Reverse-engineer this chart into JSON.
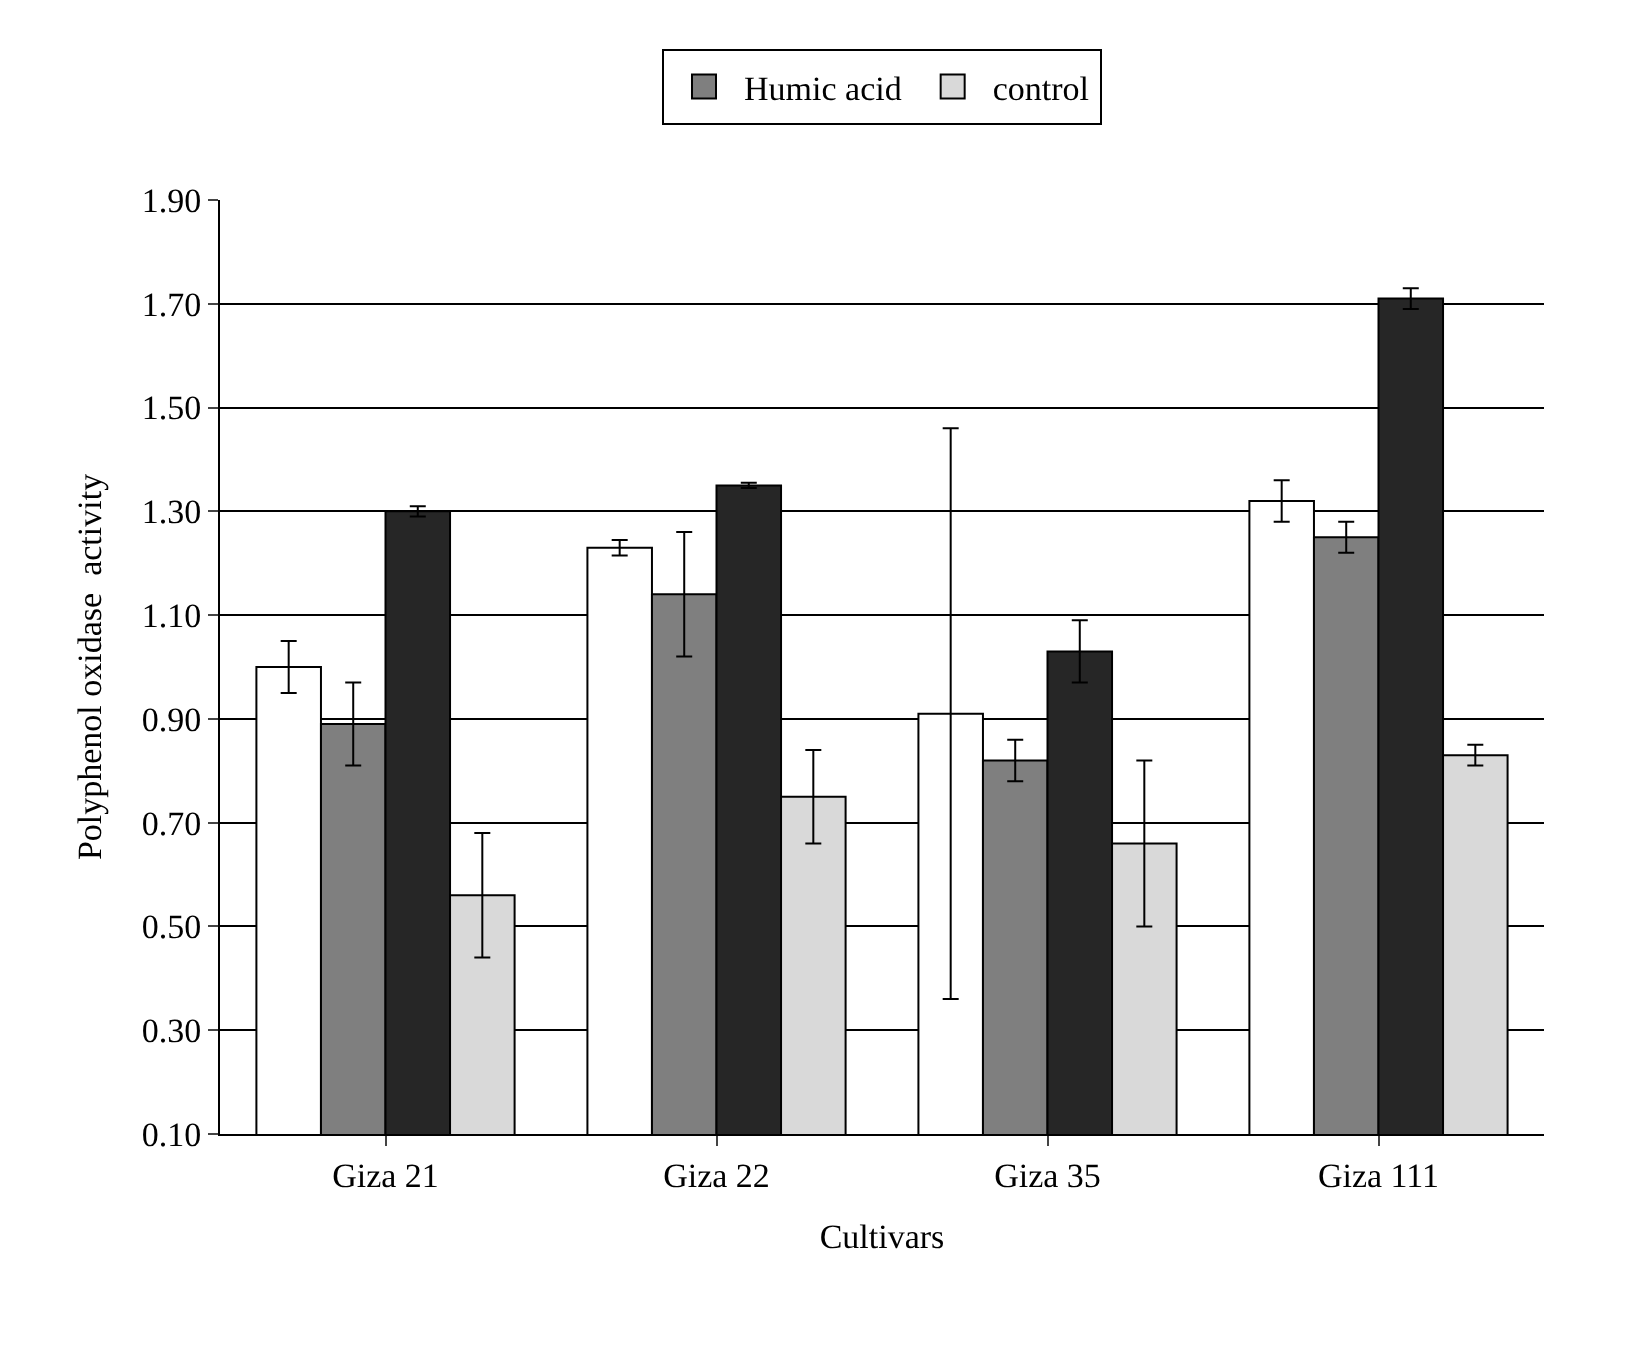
{
  "chart_data": {
    "type": "bar",
    "xlabel": "Cultivars",
    "ylabel": "Polyphenol oxidase  activity",
    "categories": [
      "Giza 21",
      "Giza 22",
      "Giza 35",
      "Giza 111"
    ],
    "series": [
      {
        "color": "#ffffff",
        "values": [
          1.0,
          1.23,
          0.91,
          1.32
        ],
        "errors": [
          0.05,
          0.015,
          0.55,
          0.04
        ]
      },
      {
        "name": "Humic acid",
        "color": "#7f7f7f",
        "values": [
          0.89,
          1.14,
          0.82,
          1.25
        ],
        "errors": [
          0.08,
          0.12,
          0.04,
          0.03
        ]
      },
      {
        "color": "#262626",
        "values": [
          1.3,
          1.35,
          1.03,
          1.71
        ],
        "errors": [
          0.01,
          0.005,
          0.06,
          0.02
        ]
      },
      {
        "name": "control",
        "color": "#d9d9d9",
        "values": [
          0.56,
          0.75,
          0.66,
          0.83
        ],
        "errors": [
          0.12,
          0.09,
          0.16,
          0.02
        ]
      }
    ],
    "ylim": [
      0.1,
      1.9
    ],
    "yticks": [
      {
        "value": 0.1,
        "label": "0.10"
      },
      {
        "value": 0.3,
        "label": "0.30"
      },
      {
        "value": 0.5,
        "label": "0.50"
      },
      {
        "value": 0.7,
        "label": "0.70"
      },
      {
        "value": 0.9,
        "label": "0.90"
      },
      {
        "value": 1.1,
        "label": "1.10"
      },
      {
        "value": 1.3,
        "label": "1.30"
      },
      {
        "value": 1.5,
        "label": "1.50"
      },
      {
        "value": 1.7,
        "label": "1.70"
      },
      {
        "value": 1.9,
        "label": "1.90"
      }
    ],
    "grid": "y",
    "legend": "top"
  }
}
